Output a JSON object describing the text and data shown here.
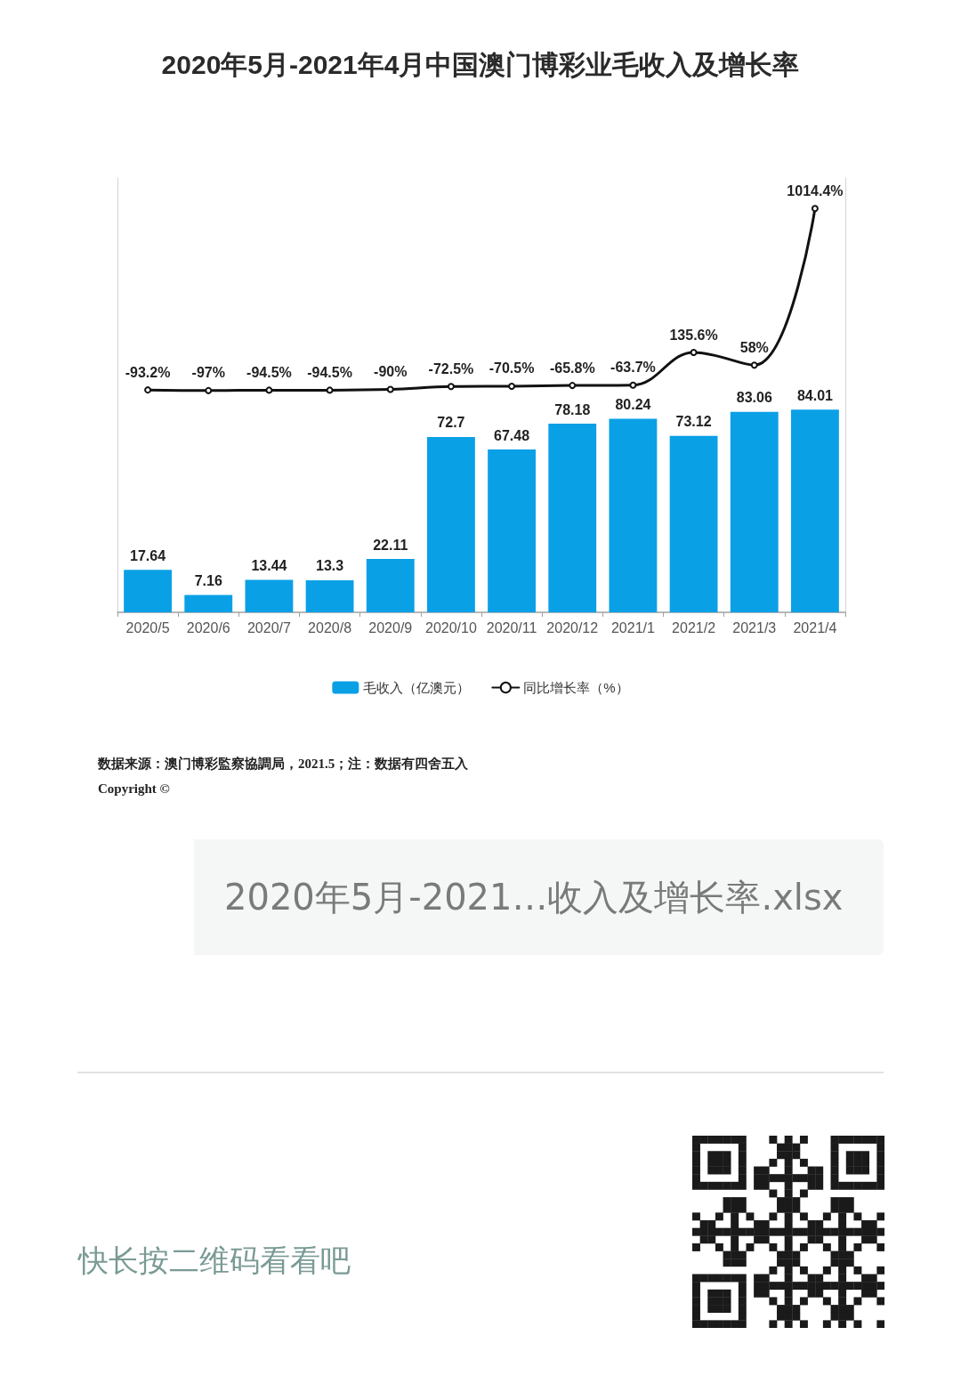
{
  "chart_data": {
    "type": "bar",
    "title": "2020年5月-2021年4月中国澳门博彩业毛收入及增长率",
    "categories": [
      "2020/5",
      "2020/6",
      "2020/7",
      "2020/8",
      "2020/9",
      "2020/10",
      "2020/11",
      "2020/12",
      "2021/1",
      "2021/2",
      "2021/3",
      "2021/4"
    ],
    "series": [
      {
        "name": "毛收入（亿澳元）",
        "color": "#0aa0e6",
        "values": [
          17.64,
          7.16,
          13.44,
          13.3,
          22.11,
          72.7,
          67.48,
          78.18,
          80.24,
          73.12,
          83.06,
          84.01
        ],
        "value_labels": [
          "17.64",
          "7.16",
          "13.44",
          "13.3",
          "22.11",
          "72.7",
          "67.48",
          "78.18",
          "80.24",
          "73.12",
          "83.06",
          "84.01"
        ]
      },
      {
        "name": "同比增长率（%）",
        "type": "line",
        "axis": "y2",
        "color": "#111111",
        "values": [
          -93.2,
          -97,
          -94.5,
          -94.5,
          -90,
          -72.5,
          -70.5,
          -65.8,
          -63.7,
          135.6,
          58,
          1014.4
        ],
        "value_labels": [
          "-93.2%",
          "-97%",
          "-94.5%",
          "-94.5%",
          "-90%",
          "-72.5%",
          "-70.5%",
          "-65.8%",
          "-63.7%",
          "135.6%",
          "58%",
          "1014.4%"
        ]
      }
    ],
    "ylim": [
      0,
      180
    ],
    "y2lim": [
      -1450,
      1200
    ],
    "legend": "bottom",
    "marker": "circle",
    "line_style": "solid",
    "tick_labels": "x",
    "annotations": [
      "数据来源：澳门博彩監察協調局，2021.5；注：数据有四舍五入",
      "Copyright ©",
      "2020年5月-2021…收入及增长率.xlsx",
      "快长按二维码看看吧"
    ]
  }
}
